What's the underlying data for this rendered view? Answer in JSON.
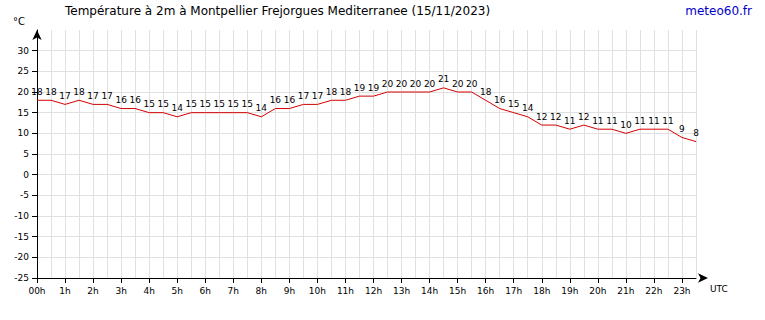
{
  "chart_data": {
    "type": "line",
    "title": "Température à 2m à Montpellier Frejorgues Mediterranee (15/11/2023)",
    "annotation": "meteo60.fr",
    "x_label": "UTC",
    "y_label": "°C",
    "categories": [
      "00h",
      null,
      "1h",
      null,
      "2h",
      null,
      "3h",
      null,
      "4h",
      null,
      "5h",
      null,
      "6h",
      null,
      "7h",
      null,
      "8h",
      null,
      "9h",
      null,
      "10h",
      null,
      "11h",
      null,
      "12h",
      null,
      "13h",
      null,
      "14h",
      null,
      "15h",
      null,
      "16h",
      null,
      "17h",
      null,
      "18h",
      null,
      "19h",
      null,
      "20h",
      null,
      "21h",
      null,
      "22h",
      null,
      "23h",
      null
    ],
    "values": [
      18,
      18,
      17,
      18,
      17,
      17,
      16,
      16,
      15,
      15,
      14,
      15,
      15,
      15,
      15,
      15,
      14,
      16,
      16,
      17,
      17,
      18,
      18,
      19,
      19,
      20,
      20,
      20,
      20,
      21,
      20,
      20,
      18,
      16,
      15,
      14,
      12,
      12,
      11,
      12,
      11,
      11,
      10,
      11,
      11,
      11,
      9,
      8
    ],
    "color": "#d40000",
    "ylim": [
      -25,
      35
    ],
    "yticks": [
      -25,
      -20,
      -15,
      -10,
      -5,
      0,
      5,
      10,
      15,
      20,
      25,
      30
    ],
    "grid": true,
    "data_labels": true
  }
}
